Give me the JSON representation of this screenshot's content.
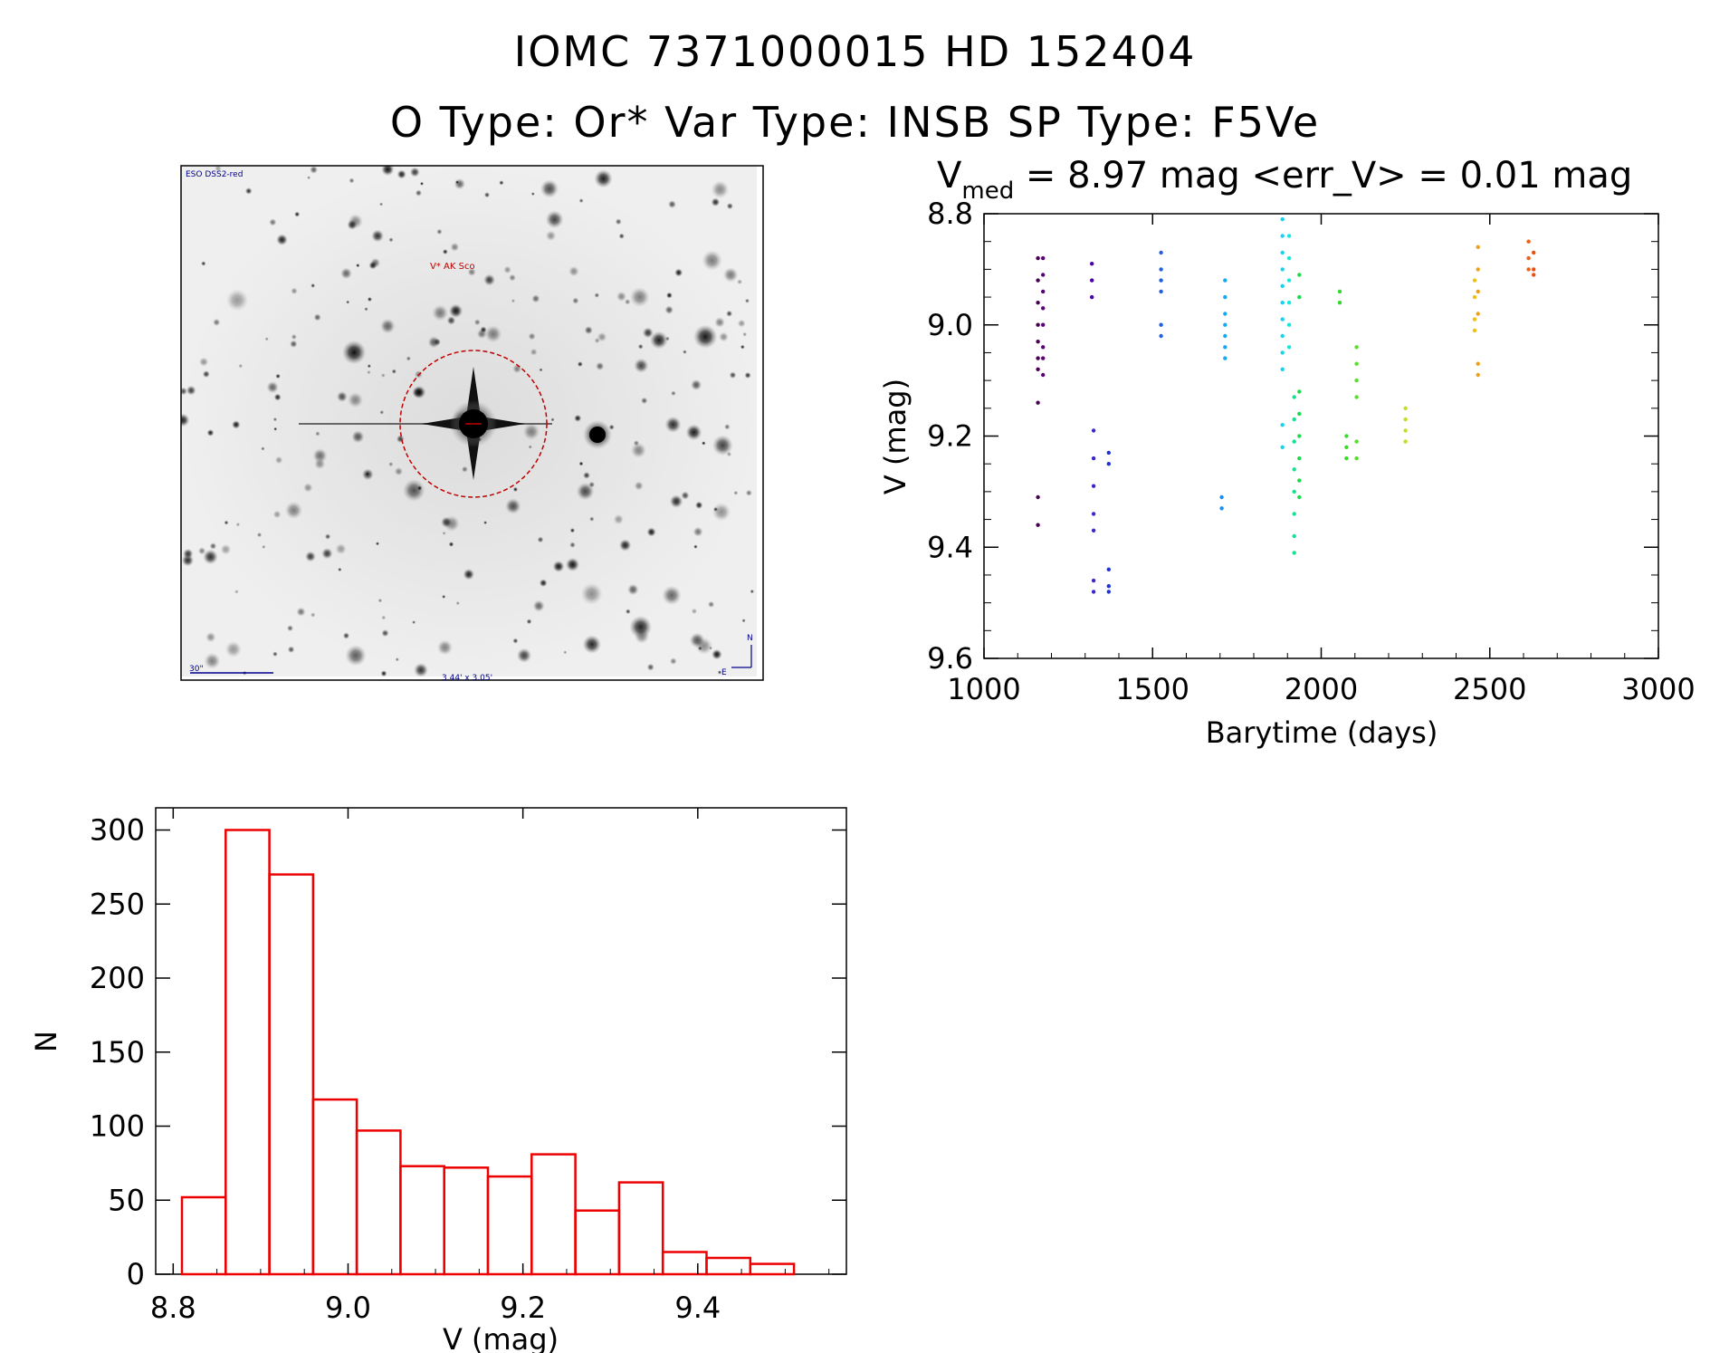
{
  "header": {
    "title": "IOMC 7371000015   HD 152404",
    "subtitle": "O Type: Or*  Var Type: INSB  SP Type: F5Ve"
  },
  "image_panel": {
    "survey_label": "ESO DSS2-red",
    "target_label": "V* AK Sco",
    "scale_label": "30\"",
    "fov_label": "3.44' x 3.05'",
    "north_label": "N",
    "east_label": "E",
    "colors": {
      "frame": "#000000",
      "circle": "#c00000",
      "labels": "#00008b",
      "target": "#c00000"
    }
  },
  "chart_data": [
    {
      "type": "scatter",
      "title_prefix": "V",
      "title_sub": "med",
      "title_rest": " = 8.97 mag <err_V> = 0.01 mag",
      "xlabel": "Barytime (days)",
      "ylabel": "V (mag)",
      "xlim": [
        1000,
        3000
      ],
      "ylim": [
        9.6,
        8.8
      ],
      "xticks": [
        "1000",
        "1500",
        "2000",
        "2500",
        "3000"
      ],
      "yticks": [
        "8.8",
        "9.0",
        "9.2",
        "9.4",
        "9.6"
      ],
      "groups": [
        {
          "x": 1160,
          "color": "#4b0055",
          "y": [
            8.88,
            8.92,
            8.96,
            9.0,
            9.03,
            9.06,
            9.08,
            9.14,
            9.31,
            9.36
          ]
        },
        {
          "x": 1175,
          "color": "#5a007a",
          "y": [
            8.88,
            8.91,
            8.94,
            8.97,
            9.0,
            9.04,
            9.06,
            9.09
          ]
        },
        {
          "x": 1320,
          "color": "#4b00a8",
          "y": [
            8.89,
            8.92,
            8.95
          ]
        },
        {
          "x": 1325,
          "color": "#3a28c8",
          "y": [
            9.19,
            9.24,
            9.29,
            9.34,
            9.37,
            9.46,
            9.48
          ]
        },
        {
          "x": 1370,
          "color": "#1e30d8",
          "y": [
            9.23,
            9.25,
            9.44,
            9.47,
            9.48
          ]
        },
        {
          "x": 1525,
          "color": "#1f5ee8",
          "y": [
            8.87,
            8.9,
            8.92,
            8.94,
            9.0,
            9.02
          ]
        },
        {
          "x": 1705,
          "color": "#1a8cf0",
          "y": [
            9.31,
            9.33
          ]
        },
        {
          "x": 1715,
          "color": "#18a8f0",
          "y": [
            8.92,
            8.95,
            8.98,
            9.0,
            9.02,
            9.04,
            9.06
          ]
        },
        {
          "x": 1885,
          "color": "#14d4f0",
          "y": [
            8.81,
            8.84,
            8.87,
            8.9,
            8.93,
            8.96,
            8.99,
            9.02,
            9.05,
            9.08,
            9.18,
            9.22
          ]
        },
        {
          "x": 1905,
          "color": "#14e8dc",
          "y": [
            8.84,
            8.88,
            8.92,
            8.96,
            9.0,
            9.04
          ]
        },
        {
          "x": 1920,
          "color": "#18e090",
          "y": [
            9.13,
            9.17,
            9.21,
            9.26,
            9.3,
            9.34,
            9.38,
            9.41
          ]
        },
        {
          "x": 1935,
          "color": "#20d850",
          "y": [
            8.91,
            8.95,
            9.12,
            9.16,
            9.2,
            9.24,
            9.28,
            9.31
          ]
        },
        {
          "x": 2055,
          "color": "#30d830",
          "y": [
            8.94,
            8.96
          ]
        },
        {
          "x": 2075,
          "color": "#40d830",
          "y": [
            9.2,
            9.22,
            9.24
          ]
        },
        {
          "x": 2105,
          "color": "#58e028",
          "y": [
            9.04,
            9.07,
            9.1,
            9.13,
            9.21,
            9.24
          ]
        },
        {
          "x": 2250,
          "color": "#c0e020",
          "y": [
            9.15,
            9.17,
            9.19,
            9.21
          ]
        },
        {
          "x": 2455,
          "color": "#f0c010",
          "y": [
            8.92,
            8.95,
            8.99,
            9.01
          ]
        },
        {
          "x": 2465,
          "color": "#f0a010",
          "y": [
            8.86,
            8.9,
            8.94,
            8.98,
            9.07,
            9.09
          ]
        },
        {
          "x": 2615,
          "color": "#f06010",
          "y": [
            8.85,
            8.88,
            8.9
          ]
        },
        {
          "x": 2630,
          "color": "#e85010",
          "y": [
            8.87,
            8.9,
            8.91
          ]
        }
      ]
    },
    {
      "type": "bar",
      "xlabel": "V (mag)",
      "ylabel": "N",
      "xlim": [
        8.78,
        9.57
      ],
      "ylim": [
        0,
        315
      ],
      "xticks": [
        "8.8",
        "9.0",
        "9.2",
        "9.4"
      ],
      "yticks": [
        "0",
        "50",
        "100",
        "150",
        "200",
        "250",
        "300"
      ],
      "bin_edges": [
        8.81,
        8.86,
        8.91,
        8.96,
        9.01,
        9.06,
        9.11,
        9.16,
        9.21,
        9.26,
        9.31,
        9.36,
        9.41,
        9.46,
        9.51
      ],
      "values": [
        52,
        300,
        270,
        118,
        97,
        73,
        72,
        66,
        81,
        43,
        62,
        15,
        11,
        7
      ],
      "color": "#ee0000"
    }
  ]
}
